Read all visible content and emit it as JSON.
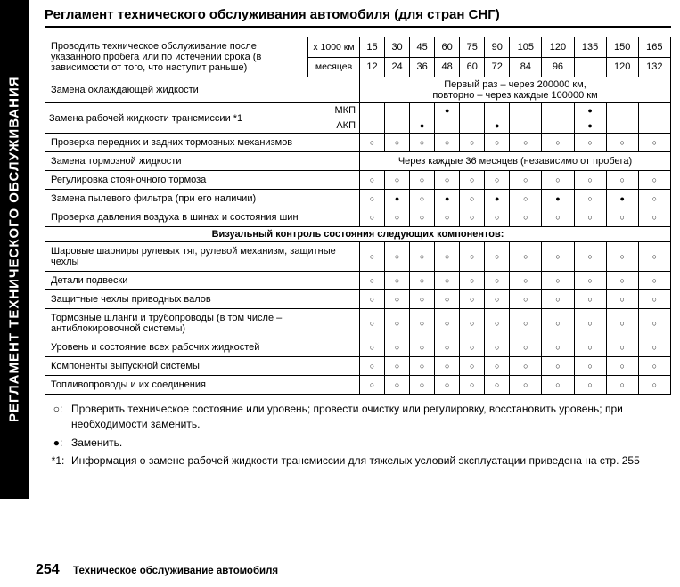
{
  "sideTab": "РЕГЛАМЕНТ ТЕХНИЧЕСКОГО ОБСЛУЖИВАНИЯ",
  "title": "Регламент технического обслуживания автомобиля (для стран СНГ)",
  "header": {
    "instruction": "Проводить техническое обслуживание после указанного пробега или по истечении срока (в зависимости от того, что наступит раньше)",
    "unit1": "x 1000 км",
    "unit2": "месяцев",
    "kmValues": [
      "15",
      "30",
      "45",
      "60",
      "75",
      "90",
      "105",
      "120",
      "135",
      "150",
      "165"
    ],
    "monthValues": [
      "12",
      "24",
      "36",
      "48",
      "60",
      "72",
      "84",
      "96",
      "",
      "120",
      "132"
    ]
  },
  "rows": {
    "coolant": {
      "label": "Замена охлаждающей жидкости",
      "note": "Первый раз – через 200000 км,\nповторно – через каждые 100000 км"
    },
    "trans": {
      "label": "Замена рабочей жидкости трансмиссии *1",
      "mkp": "МКП",
      "akp": "АКП",
      "mkpMarks": [
        "",
        "",
        "",
        "d",
        "",
        "",
        "",
        "",
        "d",
        "",
        ""
      ],
      "akpMarks": [
        "",
        "",
        "d",
        "",
        "",
        "d",
        "",
        "",
        "d",
        "",
        ""
      ]
    },
    "brakes": {
      "label": "Проверка передних и задних тормозных механизмов",
      "marks": [
        "o",
        "o",
        "o",
        "o",
        "o",
        "o",
        "o",
        "o",
        "o",
        "o",
        "o"
      ]
    },
    "brakeFluid": {
      "label": "Замена тормозной жидкости",
      "note": "Через каждые 36 месяцев (независимо от пробега)"
    },
    "parking": {
      "label": "Регулировка стояночного тормоза",
      "marks": [
        "o",
        "o",
        "o",
        "o",
        "o",
        "o",
        "o",
        "o",
        "o",
        "o",
        "o"
      ]
    },
    "dustFilter": {
      "label": "Замена пылевого фильтра (при его наличии)",
      "marks": [
        "o",
        "d",
        "o",
        "d",
        "o",
        "d",
        "o",
        "d",
        "o",
        "d",
        "o"
      ]
    },
    "tires": {
      "label": "Проверка давления воздуха в шинах и состояния шин",
      "marks": [
        "o",
        "o",
        "o",
        "o",
        "o",
        "o",
        "o",
        "o",
        "o",
        "o",
        "o"
      ]
    },
    "visualHeader": "Визуальный контроль состояния следующих компонентов:",
    "ball": {
      "label": "Шаровые шарниры рулевых тяг, рулевой механизм, защитные чехлы",
      "marks": [
        "o",
        "o",
        "o",
        "o",
        "o",
        "o",
        "o",
        "o",
        "o",
        "o",
        "o"
      ]
    },
    "suspension": {
      "label": "Детали подвески",
      "marks": [
        "o",
        "o",
        "o",
        "o",
        "o",
        "o",
        "o",
        "o",
        "o",
        "o",
        "o"
      ]
    },
    "boots": {
      "label": "Защитные чехлы приводных валов",
      "marks": [
        "o",
        "o",
        "o",
        "o",
        "o",
        "o",
        "o",
        "o",
        "o",
        "o",
        "o"
      ]
    },
    "hoses": {
      "label": "Тормозные шланги и трубопроводы (в том числе – антиблокировочной системы)",
      "marks": [
        "o",
        "o",
        "o",
        "o",
        "o",
        "o",
        "o",
        "o",
        "o",
        "o",
        "o"
      ]
    },
    "fluids": {
      "label": "Уровень и состояние всех рабочих жидкостей",
      "marks": [
        "o",
        "o",
        "o",
        "o",
        "o",
        "o",
        "o",
        "o",
        "o",
        "o",
        "o"
      ]
    },
    "exhaust": {
      "label": "Компоненты выпускной системы",
      "marks": [
        "o",
        "o",
        "o",
        "o",
        "o",
        "o",
        "o",
        "o",
        "o",
        "o",
        "o"
      ]
    },
    "fuel": {
      "label": "Топливопроводы и их соединения",
      "marks": [
        "o",
        "o",
        "o",
        "o",
        "o",
        "o",
        "o",
        "o",
        "o",
        "o",
        "o"
      ]
    }
  },
  "legend": {
    "circle": "○:",
    "circleText": "Проверить техническое состояние или уровень; провести очистку или регулировку, восстановить уровень; при необходимости заменить.",
    "dot": "●:",
    "dotText": "Заменить.",
    "note": "*1:",
    "noteText": "Информация о замене рабочей жидкости трансмиссии для тяжелых условий эксплуатации приведена на стр. 255"
  },
  "footer": {
    "pageNum": "254",
    "text": "Техническое обслуживание автомобиля"
  }
}
